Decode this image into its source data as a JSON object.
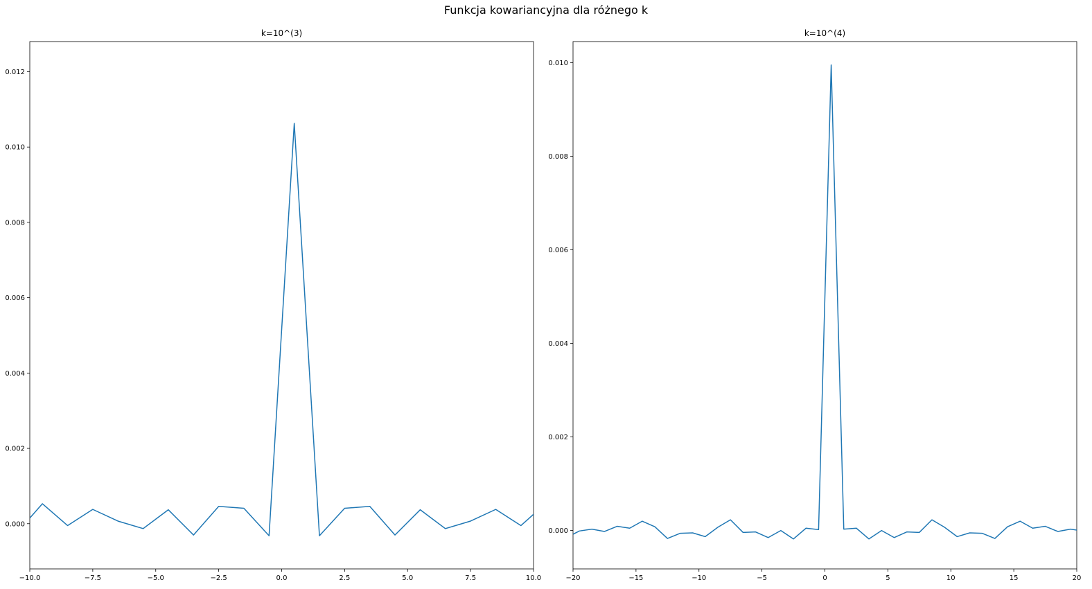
{
  "figure": {
    "suptitle": "Funkcja kowariancyjna dla różnego k"
  },
  "chart_data": [
    {
      "type": "line",
      "title": "k=10^(3)",
      "xlabel": "",
      "ylabel": "",
      "xlim": [
        -10,
        10
      ],
      "ylim": [
        -0.0012,
        0.0128
      ],
      "xticks": [
        -10,
        -7.5,
        -5,
        -2.5,
        0,
        2.5,
        5,
        7.5,
        10
      ],
      "xtick_labels": [
        "−10.0",
        "−7.5",
        "−5.0",
        "−2.5",
        "0.0",
        "2.5",
        "5.0",
        "7.5",
        "10.0"
      ],
      "yticks": [
        0,
        0.002,
        0.004,
        0.006,
        0.008,
        0.01,
        0.012
      ],
      "ytick_labels": [
        "0.000",
        "0.002",
        "0.004",
        "0.006",
        "0.008",
        "0.010",
        "0.012"
      ],
      "grid": false,
      "color": "#1f77b4",
      "x": [
        -10,
        -9.5,
        -8.5,
        -7.5,
        -6.5,
        -5.5,
        -4.5,
        -3.5,
        -2.5,
        -1.5,
        -0.5,
        0.5,
        1.5,
        2.5,
        3.5,
        4.5,
        5.5,
        6.5,
        7.5,
        8.5,
        9.5,
        10
      ],
      "y": [
        0.00015,
        0.00053,
        -5e-05,
        0.00038,
        7e-05,
        -0.00013,
        0.00037,
        -0.0003,
        0.00046,
        0.00041,
        -0.00032,
        0.01063,
        -0.00032,
        0.00041,
        0.00046,
        -0.0003,
        0.00037,
        -0.00013,
        7e-05,
        0.00038,
        -5e-05,
        0.00025
      ]
    },
    {
      "type": "line",
      "title": "k=10^(4)",
      "xlabel": "",
      "ylabel": "",
      "xlim": [
        -20,
        20
      ],
      "ylim": [
        -0.00082,
        0.01045
      ],
      "xticks": [
        -20,
        -15,
        -10,
        -5,
        0,
        5,
        10,
        15,
        20
      ],
      "xtick_labels": [
        "−20",
        "−15",
        "−10",
        "−5",
        "0",
        "5",
        "10",
        "15",
        "20"
      ],
      "yticks": [
        0,
        0.002,
        0.004,
        0.006,
        0.008,
        0.01
      ],
      "ytick_labels": [
        "0.000",
        "0.002",
        "0.004",
        "0.006",
        "0.008",
        "0.010"
      ],
      "grid": false,
      "color": "#1f77b4",
      "x": [
        -20,
        -19.5,
        -18.5,
        -17.5,
        -16.5,
        -15.5,
        -14.5,
        -13.5,
        -12.5,
        -11.5,
        -10.5,
        -9.5,
        -8.5,
        -7.5,
        -6.5,
        -5.5,
        -4.5,
        -3.5,
        -2.5,
        -1.5,
        -0.5,
        0.5,
        1.5,
        2.5,
        3.5,
        4.5,
        5.5,
        6.5,
        7.5,
        8.5,
        9.5,
        10.5,
        11.5,
        12.5,
        13.5,
        14.5,
        15.5,
        16.5,
        17.5,
        18.5,
        19.5,
        20
      ],
      "y": [
        -8e-05,
        -1e-05,
        3e-05,
        -2e-05,
        9e-05,
        5e-05,
        0.0002,
        8e-05,
        -0.00017,
        -6e-05,
        -5e-05,
        -0.00013,
        7e-05,
        0.00023,
        -4e-05,
        -3e-05,
        -0.00015,
        0.0,
        -0.00018,
        5e-05,
        2e-05,
        0.00995,
        3e-05,
        5e-05,
        -0.00018,
        0.0,
        -0.00015,
        -3e-05,
        -4e-05,
        0.00023,
        7e-05,
        -0.00013,
        -5e-05,
        -6e-05,
        -0.00017,
        8e-05,
        0.0002,
        5e-05,
        9e-05,
        -2e-05,
        3e-05,
        1e-05
      ]
    }
  ]
}
